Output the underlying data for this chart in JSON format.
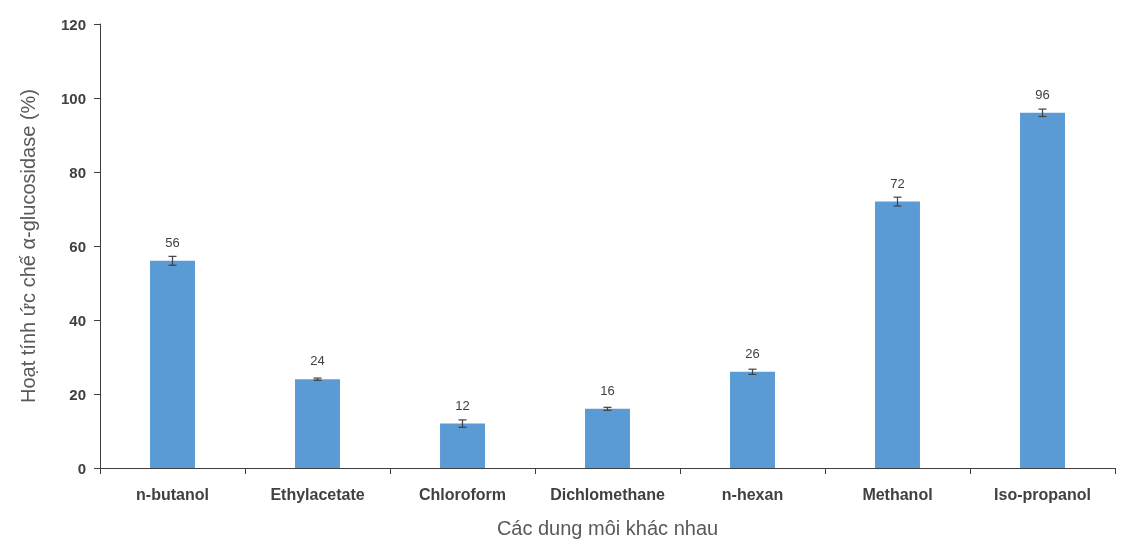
{
  "chart_data": {
    "type": "bar",
    "xlabel": "Các dung môi khác nhau",
    "ylabel": "Hoạt tính ức chế α-glucosidase (%)",
    "categories": [
      "n-butanol",
      "Ethylacetate",
      "Chloroform",
      "Dichlomethane",
      "n-hexan",
      "Methanol",
      "Iso-propanol"
    ],
    "values": [
      56,
      24,
      12,
      16,
      26,
      72,
      96
    ],
    "errors": [
      1.2,
      0.3,
      1,
      0.4,
      0.7,
      1.2,
      1
    ],
    "color": "#5b9bd5",
    "ylim": [
      0,
      120
    ],
    "yticks": [
      0,
      20,
      40,
      60,
      80,
      100,
      120
    ],
    "grid": false,
    "data_labels": true
  }
}
